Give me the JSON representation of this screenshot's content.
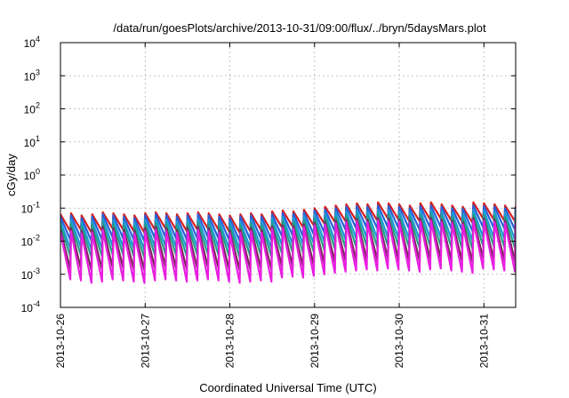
{
  "chart_data": {
    "type": "line",
    "title": "/data/run/goesPlots/archive/2013-10-31/09:00/flux/../bryn/5daysMars.plot",
    "xlabel": "Coordinated Universal Time (UTC)",
    "ylabel": "cGy/day",
    "y_scale": "log",
    "ylim": [
      0.0001,
      10000
    ],
    "xlim": [
      "2013-10-26 00:00",
      "2013-10-31 09:00"
    ],
    "grid": true,
    "legend": "none",
    "x_ticks": [
      "2013-10-26",
      "2013-10-27",
      "2013-10-28",
      "2013-10-29",
      "2013-10-30",
      "2013-10-31"
    ],
    "y_ticks": [
      {
        "base": "10",
        "exp": "-4",
        "value": 0.0001
      },
      {
        "base": "10",
        "exp": "-3",
        "value": 0.001
      },
      {
        "base": "10",
        "exp": "-2",
        "value": 0.01
      },
      {
        "base": "10",
        "exp": "-1",
        "value": 0.1
      },
      {
        "base": "10",
        "exp": "0",
        "value": 1
      },
      {
        "base": "10",
        "exp": "1",
        "value": 10
      },
      {
        "base": "10",
        "exp": "2",
        "value": 100
      },
      {
        "base": "10",
        "exp": "3",
        "value": 1000
      },
      {
        "base": "10",
        "exp": "4",
        "value": 10000
      }
    ],
    "cycle_hours": 3,
    "cycle_start": "2013-10-26 00:00",
    "series": [
      {
        "color": "#d62020",
        "peaks": [
          0.065,
          0.07,
          0.06,
          0.065,
          0.075,
          0.07,
          0.065,
          0.06,
          0.07,
          0.075,
          0.07,
          0.065,
          0.07,
          0.075,
          0.07,
          0.065,
          0.06,
          0.065,
          0.07,
          0.065,
          0.08,
          0.085,
          0.08,
          0.09,
          0.1,
          0.11,
          0.12,
          0.13,
          0.14,
          0.13,
          0.15,
          0.14,
          0.13,
          0.12,
          0.14,
          0.15,
          0.13,
          0.12,
          0.11,
          0.15,
          0.14,
          0.13,
          0.12,
          0.11
        ],
        "troughs": [
          0.02,
          0.022,
          0.018,
          0.02,
          0.024,
          0.022,
          0.02,
          0.018,
          0.022,
          0.024,
          0.022,
          0.02,
          0.022,
          0.024,
          0.022,
          0.02,
          0.018,
          0.02,
          0.022,
          0.02,
          0.026,
          0.028,
          0.026,
          0.03,
          0.034,
          0.038,
          0.04,
          0.042,
          0.045,
          0.042,
          0.048,
          0.045,
          0.042,
          0.04,
          0.045,
          0.048,
          0.042,
          0.04,
          0.036,
          0.048,
          0.045,
          0.042,
          0.04,
          0.036
        ]
      },
      {
        "color": "#2a5fd8",
        "peaks": [
          0.055,
          0.06,
          0.05,
          0.055,
          0.065,
          0.06,
          0.055,
          0.05,
          0.06,
          0.065,
          0.06,
          0.055,
          0.06,
          0.065,
          0.06,
          0.055,
          0.05,
          0.055,
          0.06,
          0.055,
          0.065,
          0.07,
          0.068,
          0.075,
          0.085,
          0.09,
          0.1,
          0.11,
          0.115,
          0.11,
          0.12,
          0.115,
          0.11,
          0.1,
          0.115,
          0.12,
          0.11,
          0.1,
          0.095,
          0.12,
          0.115,
          0.11,
          0.1,
          0.095
        ],
        "troughs": [
          0.011,
          0.012,
          0.01,
          0.011,
          0.013,
          0.012,
          0.011,
          0.01,
          0.012,
          0.013,
          0.012,
          0.011,
          0.012,
          0.013,
          0.012,
          0.011,
          0.01,
          0.011,
          0.012,
          0.011,
          0.014,
          0.015,
          0.014,
          0.016,
          0.018,
          0.02,
          0.022,
          0.024,
          0.025,
          0.024,
          0.026,
          0.025,
          0.024,
          0.022,
          0.025,
          0.026,
          0.024,
          0.022,
          0.02,
          0.026,
          0.025,
          0.024,
          0.022,
          0.02
        ]
      },
      {
        "color": "#1c9ad6",
        "peaks": [
          0.04,
          0.045,
          0.038,
          0.04,
          0.048,
          0.045,
          0.04,
          0.038,
          0.045,
          0.048,
          0.045,
          0.04,
          0.045,
          0.048,
          0.045,
          0.04,
          0.038,
          0.04,
          0.045,
          0.04,
          0.05,
          0.055,
          0.052,
          0.058,
          0.065,
          0.07,
          0.075,
          0.08,
          0.085,
          0.08,
          0.09,
          0.085,
          0.08,
          0.075,
          0.085,
          0.09,
          0.08,
          0.075,
          0.07,
          0.09,
          0.085,
          0.08,
          0.075,
          0.07
        ],
        "troughs": [
          0.006,
          0.0065,
          0.0055,
          0.006,
          0.007,
          0.0065,
          0.006,
          0.0055,
          0.0065,
          0.007,
          0.0065,
          0.006,
          0.0065,
          0.007,
          0.0065,
          0.006,
          0.0055,
          0.006,
          0.0065,
          0.006,
          0.0075,
          0.008,
          0.0078,
          0.0085,
          0.0095,
          0.01,
          0.011,
          0.012,
          0.0125,
          0.012,
          0.013,
          0.0125,
          0.012,
          0.011,
          0.0125,
          0.013,
          0.012,
          0.011,
          0.01,
          0.013,
          0.0125,
          0.012,
          0.011,
          0.01
        ]
      },
      {
        "color": "#22a088",
        "peaks": [
          0.03,
          0.033,
          0.028,
          0.03,
          0.035,
          0.033,
          0.03,
          0.028,
          0.033,
          0.035,
          0.033,
          0.03,
          0.033,
          0.035,
          0.033,
          0.03,
          0.028,
          0.03,
          0.033,
          0.03,
          0.036,
          0.04,
          0.038,
          0.042,
          0.047,
          0.05,
          0.055,
          0.06,
          0.062,
          0.06,
          0.066,
          0.062,
          0.06,
          0.055,
          0.062,
          0.066,
          0.06,
          0.055,
          0.05,
          0.066,
          0.062,
          0.06,
          0.055,
          0.05
        ],
        "troughs": [
          0.0035,
          0.0038,
          0.0032,
          0.0035,
          0.004,
          0.0038,
          0.0035,
          0.0032,
          0.0038,
          0.004,
          0.0038,
          0.0035,
          0.0038,
          0.004,
          0.0038,
          0.0035,
          0.0032,
          0.0035,
          0.0038,
          0.0035,
          0.0042,
          0.0046,
          0.0044,
          0.0048,
          0.0054,
          0.0058,
          0.0062,
          0.0066,
          0.007,
          0.0066,
          0.0072,
          0.007,
          0.0066,
          0.0062,
          0.007,
          0.0072,
          0.0066,
          0.0062,
          0.0058,
          0.0072,
          0.007,
          0.0066,
          0.0062,
          0.0058
        ]
      },
      {
        "color": "#7a2a5a",
        "peaks": [
          0.022,
          0.025,
          0.021,
          0.022,
          0.027,
          0.025,
          0.022,
          0.021,
          0.025,
          0.027,
          0.025,
          0.022,
          0.025,
          0.027,
          0.025,
          0.022,
          0.021,
          0.022,
          0.025,
          0.022,
          0.028,
          0.03,
          0.029,
          0.032,
          0.036,
          0.038,
          0.042,
          0.045,
          0.048,
          0.045,
          0.05,
          0.048,
          0.045,
          0.042,
          0.048,
          0.05,
          0.045,
          0.042,
          0.038,
          0.05,
          0.048,
          0.045,
          0.042,
          0.038
        ],
        "troughs": [
          0.0014,
          0.0015,
          0.0013,
          0.0014,
          0.0016,
          0.0015,
          0.0014,
          0.0013,
          0.0015,
          0.0016,
          0.0015,
          0.0014,
          0.0015,
          0.0016,
          0.0015,
          0.0014,
          0.0013,
          0.0014,
          0.0015,
          0.0014,
          0.0017,
          0.0018,
          0.0017,
          0.0019,
          0.0021,
          0.0023,
          0.0025,
          0.0026,
          0.0028,
          0.0026,
          0.003,
          0.0028,
          0.0026,
          0.0025,
          0.0028,
          0.003,
          0.0026,
          0.0025,
          0.0023,
          0.003,
          0.0028,
          0.0026,
          0.0025,
          0.0023
        ]
      },
      {
        "color": "#e81ee0",
        "peaks": [
          0.018,
          0.02,
          0.017,
          0.018,
          0.022,
          0.02,
          0.018,
          0.017,
          0.02,
          0.022,
          0.02,
          0.018,
          0.02,
          0.022,
          0.02,
          0.018,
          0.017,
          0.018,
          0.02,
          0.018,
          0.023,
          0.025,
          0.024,
          0.027,
          0.03,
          0.032,
          0.035,
          0.038,
          0.04,
          0.038,
          0.042,
          0.04,
          0.038,
          0.035,
          0.04,
          0.042,
          0.038,
          0.035,
          0.032,
          0.042,
          0.04,
          0.038,
          0.035,
          0.032
        ],
        "troughs": [
          0.0007,
          0.00065,
          0.00055,
          0.0006,
          0.0007,
          0.00065,
          0.0006,
          0.00055,
          0.00065,
          0.0007,
          0.00065,
          0.0006,
          0.00065,
          0.0007,
          0.00065,
          0.0006,
          0.00055,
          0.0006,
          0.00065,
          0.0006,
          0.0008,
          0.00085,
          0.0008,
          0.0009,
          0.001,
          0.0011,
          0.0012,
          0.0013,
          0.0014,
          0.0013,
          0.0015,
          0.0014,
          0.0013,
          0.0012,
          0.0014,
          0.0015,
          0.0013,
          0.0012,
          0.0011,
          0.0015,
          0.0014,
          0.0013,
          0.0012,
          0.0011
        ]
      }
    ]
  }
}
